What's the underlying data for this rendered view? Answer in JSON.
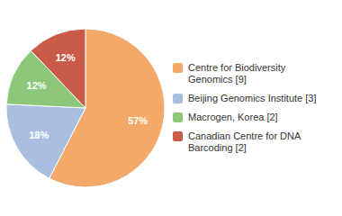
{
  "chart_data": {
    "type": "pie",
    "categories": [
      "Centre for Biodiversity\nGenomics [9]",
      "Beijing Genomics Institute [3]",
      "Macrogen, Korea [2]",
      "Canadian Centre for DNA\nBarcoding [2]"
    ],
    "values": [
      57,
      18,
      12,
      12
    ],
    "value_labels": [
      "57%",
      "18%",
      "12%",
      "12%"
    ],
    "colors": [
      "#F2A96A",
      "#A9BFE0",
      "#8DC87A",
      "#C95B48"
    ],
    "data_labels": true,
    "legend": "right"
  }
}
